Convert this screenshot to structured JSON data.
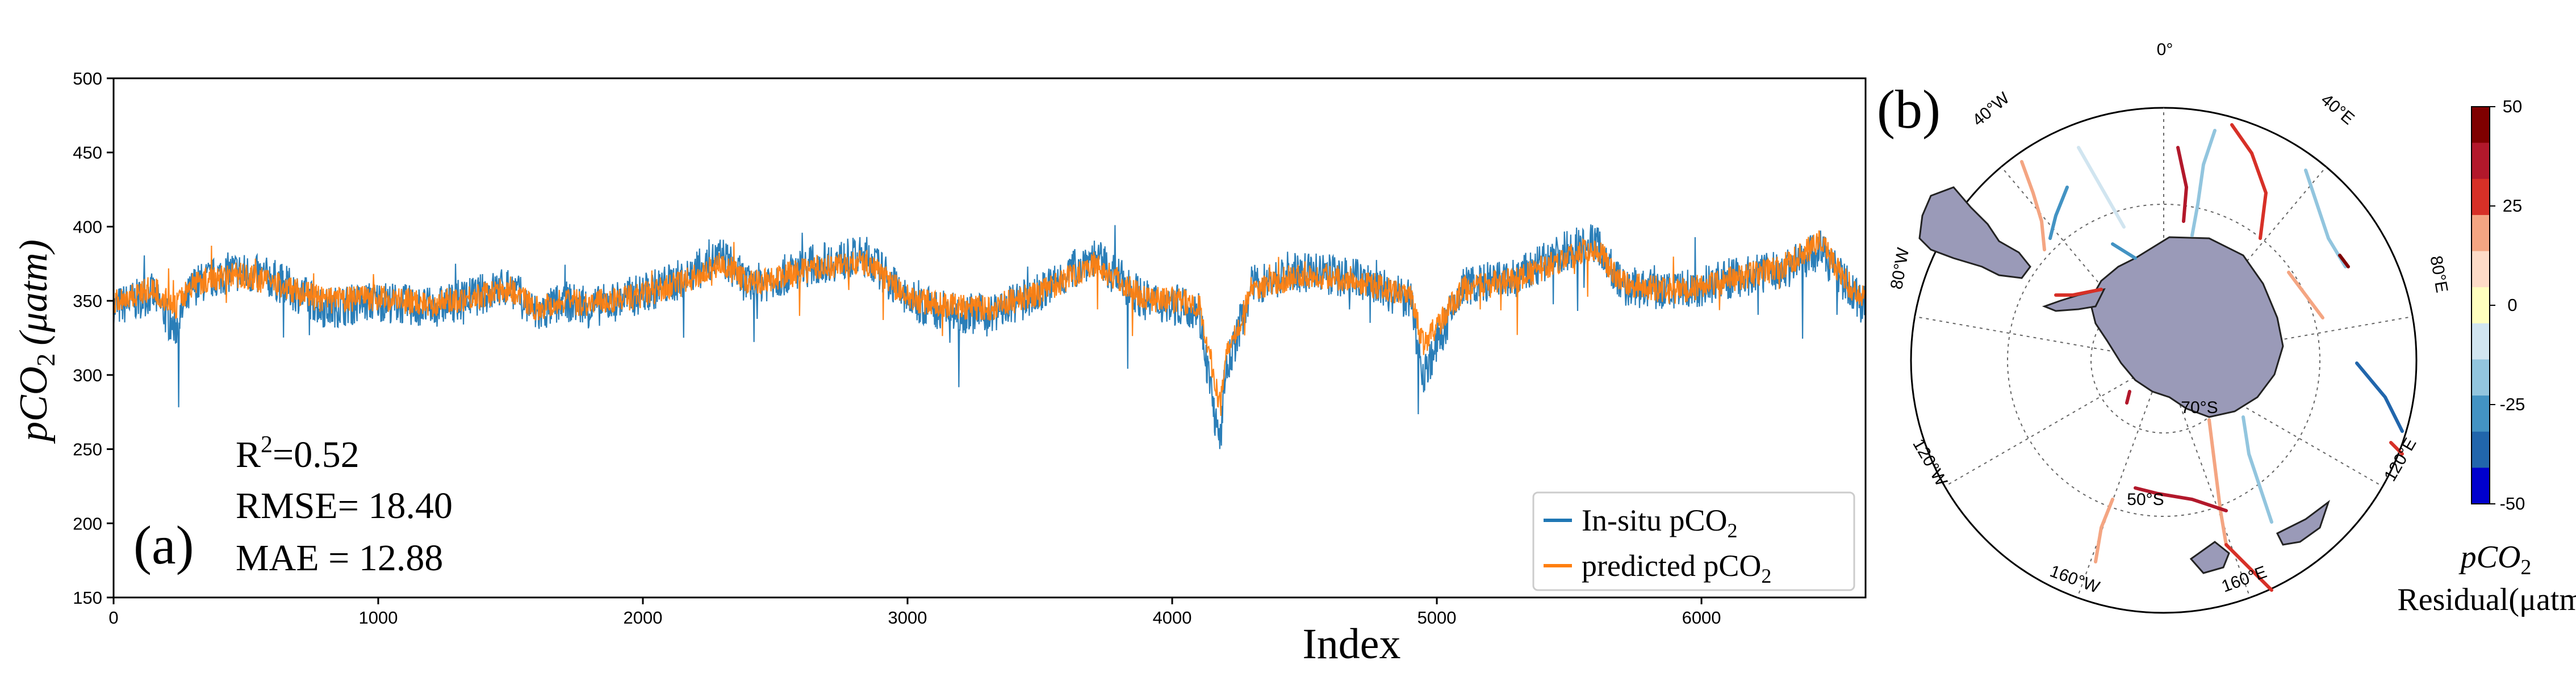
{
  "chart_data": [
    {
      "type": "line",
      "panel_label": "(a)",
      "xlabel": "Index",
      "ylabel_prefix": "pCO",
      "ylabel_sub": "2",
      "ylabel_unit": "(μatm)",
      "xlim": [
        0,
        6620
      ],
      "ylim": [
        150,
        500
      ],
      "x_ticks": [
        0,
        1000,
        2000,
        3000,
        4000,
        5000,
        6000
      ],
      "y_ticks": [
        150,
        200,
        250,
        300,
        350,
        400,
        450,
        500
      ],
      "x_tick_labels": [
        "0",
        "1000",
        "2000",
        "3000",
        "4000",
        "5000",
        "6000"
      ],
      "y_tick_labels": [
        "150",
        "200",
        "250",
        "300",
        "350",
        "400",
        "450",
        "500"
      ],
      "stats": {
        "r2_prefix": "R",
        "r2_sup": "2",
        "r2_value": "=0.52",
        "rmse": "RMSE= 18.40",
        "mae": "MAE  = 12.88"
      },
      "legend_position": "bottom-right",
      "series": [
        {
          "name": "In-situ  pCO",
          "name_sub": "2",
          "color": "#1f77b4",
          "x": [
            0,
            150,
            230,
            300,
            450,
            600,
            800,
            1000,
            1200,
            1400,
            1500,
            1600,
            1700,
            1800,
            2000,
            2150,
            2300,
            2400,
            2500,
            2650,
            2850,
            3000,
            3100,
            3300,
            3500,
            3700,
            3900,
            4100,
            4180,
            4200,
            4300,
            4500,
            4700,
            4900,
            4950,
            5100,
            5300,
            5500,
            5600,
            5700,
            5900,
            6100,
            6300,
            6450,
            6550,
            6620
          ],
          "values": [
            345,
            355,
            330,
            360,
            370,
            365,
            345,
            350,
            345,
            355,
            360,
            340,
            350,
            345,
            355,
            365,
            380,
            360,
            365,
            375,
            380,
            350,
            345,
            340,
            355,
            380,
            350,
            345,
            250,
            300,
            360,
            370,
            365,
            350,
            300,
            360,
            365,
            385,
            390,
            360,
            355,
            365,
            370,
            385,
            360,
            345
          ]
        },
        {
          "name": "predicted   pCO",
          "name_sub": "2",
          "color": "#ff7f0e",
          "x": [
            0,
            150,
            230,
            300,
            450,
            600,
            800,
            1000,
            1200,
            1400,
            1500,
            1600,
            1700,
            1800,
            2000,
            2150,
            2300,
            2400,
            2500,
            2650,
            2850,
            3000,
            3100,
            3300,
            3500,
            3700,
            3900,
            4100,
            4180,
            4200,
            4300,
            4500,
            4700,
            4900,
            4950,
            5100,
            5300,
            5500,
            5600,
            5700,
            5900,
            6100,
            6300,
            6450,
            6550,
            6620
          ],
          "values": [
            350,
            358,
            345,
            362,
            368,
            362,
            350,
            352,
            348,
            354,
            358,
            345,
            350,
            348,
            354,
            362,
            375,
            362,
            365,
            372,
            376,
            352,
            348,
            345,
            355,
            375,
            352,
            348,
            280,
            310,
            358,
            368,
            364,
            352,
            320,
            358,
            364,
            380,
            386,
            362,
            356,
            364,
            372,
            390,
            362,
            350
          ]
        }
      ]
    },
    {
      "type": "heatmap",
      "panel_label": "(b)",
      "description_type": "polar-stereographic",
      "lon_labels": [
        "0°",
        "40°E",
        "80°E",
        "120°E",
        "160°E",
        "160°W",
        "120°W",
        "80°W",
        "40°W"
      ],
      "lat_labels": [
        "70°S",
        "50°S"
      ],
      "colorbar": {
        "title_prefix": "pCO",
        "title_sub": "2",
        "title_line2": "Residual(μatm)",
        "ticks": [
          "50",
          "25",
          "0",
          "-25",
          "-50"
        ],
        "range": [
          -50,
          50
        ],
        "colors": [
          "#7f0000",
          "#b2182b",
          "#d73027",
          "#f4a582",
          "#fddbc7",
          "#ffffbf",
          "#d1e5f0",
          "#92c5de",
          "#4393c3",
          "#2166ac",
          "#0000cd"
        ]
      }
    }
  ]
}
